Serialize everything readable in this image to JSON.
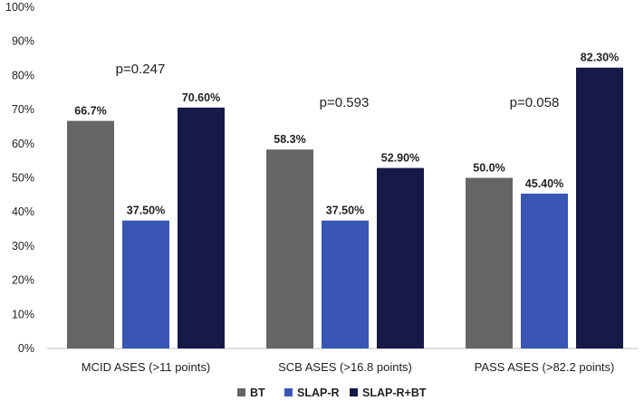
{
  "chart_data": {
    "type": "bar",
    "title": "",
    "xlabel": "",
    "ylabel": "",
    "ylim": [
      0,
      100
    ],
    "y_tick_labels": [
      "0%",
      "10%",
      "20%",
      "30%",
      "40%",
      "50%",
      "60%",
      "70%",
      "80%",
      "90%",
      "100%"
    ],
    "grid": false,
    "legend_position": "bottom",
    "categories": [
      "MCID ASES (>11 points)",
      "SCB ASES (>16.8 points)",
      "PASS ASES (>82.2 points)"
    ],
    "series": [
      {
        "name": "BT",
        "color": "#676465",
        "values": [
          66.7,
          58.3,
          50.0
        ],
        "labels": [
          "66.7%",
          "58.3%",
          "50.0%"
        ]
      },
      {
        "name": "SLAP-R",
        "color": "#3a56b5",
        "values": [
          37.5,
          37.5,
          45.4
        ],
        "labels": [
          "37.50%",
          "37.50%",
          "45.40%"
        ]
      },
      {
        "name": "SLAP-R+BT",
        "color": "#161a47",
        "values": [
          70.6,
          52.9,
          82.3
        ],
        "labels": [
          "70.60%",
          "52.90%",
          "82.30%"
        ]
      }
    ],
    "annotations": [
      "p=0.247",
      "p=0.593",
      "p=0.058"
    ]
  }
}
